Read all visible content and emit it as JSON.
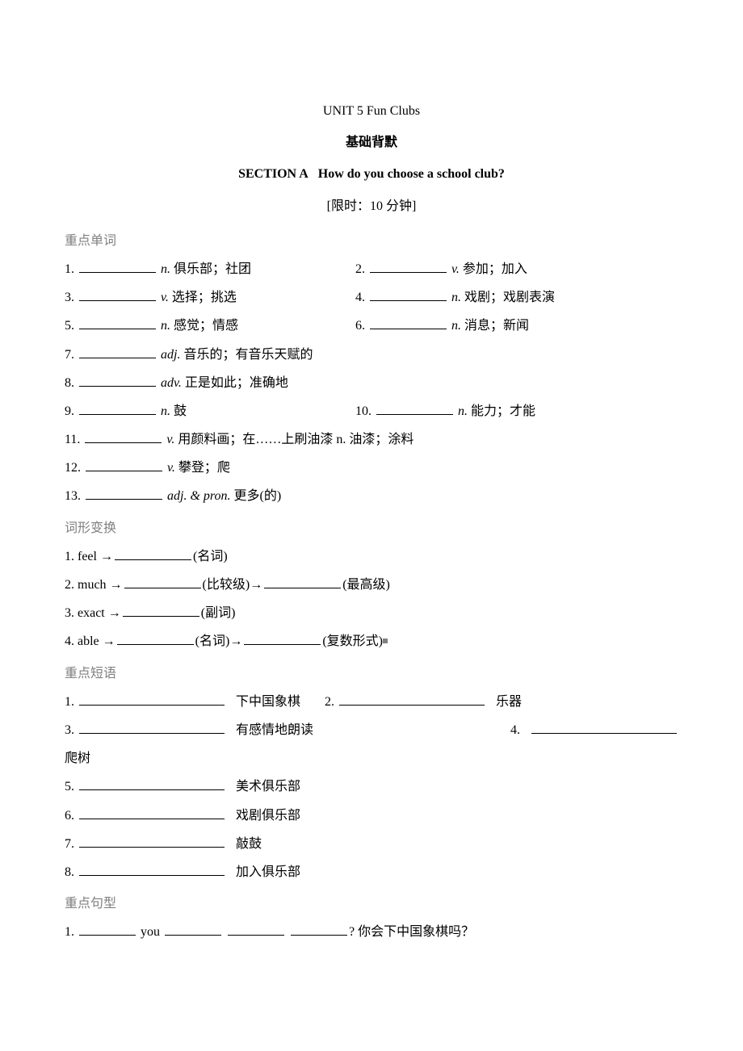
{
  "header": {
    "unit": "UNIT 5 Fun Clubs",
    "subtitle": "基础背默",
    "section_prefix": "SECTION A",
    "section_title": "How do you choose a school club?",
    "time_limit": "[限时：10 分钟]"
  },
  "vocab": {
    "label": "重点单词",
    "items": [
      {
        "num": "1.",
        "pos": "n.",
        "def": "俱乐部；社团"
      },
      {
        "num": "2.",
        "pos": "v.",
        "def": "参加；加入"
      },
      {
        "num": "3.",
        "pos": "v.",
        "def": "选择；挑选"
      },
      {
        "num": "4.",
        "pos": "n.",
        "def": "戏剧；戏剧表演"
      },
      {
        "num": "5.",
        "pos": "n.",
        "def": "感觉；情感"
      },
      {
        "num": "6.",
        "pos": "n.",
        "def": "消息；新闻"
      },
      {
        "num": "7.",
        "pos": "adj.",
        "def": "音乐的；有音乐天赋的"
      },
      {
        "num": "8.",
        "pos": "adv.",
        "def": "正是如此；准确地"
      },
      {
        "num": "9.",
        "pos": "n.",
        "def": "鼓"
      },
      {
        "num": "10.",
        "pos": "n.",
        "def": "能力；才能"
      },
      {
        "num": "11.",
        "pos": "v.",
        "def": "用颜料画；在……上刷油漆  n.  油漆；涂料"
      },
      {
        "num": "12.",
        "pos": "v.",
        "def": "攀登；爬"
      },
      {
        "num": "13.",
        "pos": "adj. & pron.",
        "def": "更多(的)"
      }
    ]
  },
  "transform": {
    "label": "词形变换",
    "items": [
      {
        "num": "1.",
        "word": "feel",
        "forms": [
          "(名词)"
        ]
      },
      {
        "num": "2.",
        "word": "much",
        "forms": [
          "(比较级)",
          "(最高级)"
        ]
      },
      {
        "num": "3.",
        "word": "exact",
        "forms": [
          "(副词)"
        ]
      },
      {
        "num": "4.",
        "word": "able",
        "forms": [
          "(名词)",
          "(复数形式)"
        ]
      }
    ]
  },
  "phrases": {
    "label": "重点短语",
    "items": [
      {
        "num": "1.",
        "def": "下中国象棋"
      },
      {
        "num": "2.",
        "def": "乐器"
      },
      {
        "num": "3.",
        "def": "有感情地朗读"
      },
      {
        "num": "4.",
        "def": ""
      }
    ],
    "extra_def": "爬树",
    "more": [
      {
        "num": "5.",
        "def": "美术俱乐部"
      },
      {
        "num": "6.",
        "def": "戏剧俱乐部"
      },
      {
        "num": "7.",
        "def": "敲鼓"
      },
      {
        "num": "8.",
        "def": "加入俱乐部"
      }
    ]
  },
  "sentences": {
    "label": "重点句型",
    "item1": {
      "num": "1.",
      "you": "you",
      "tail": "?  你会下中国象棋吗？"
    }
  }
}
